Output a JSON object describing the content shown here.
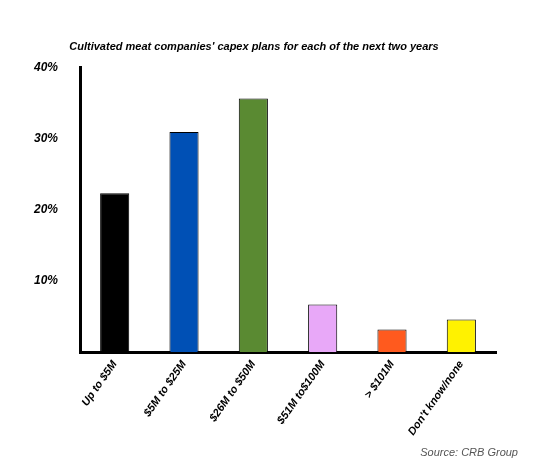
{
  "chart_data": {
    "type": "bar",
    "title": "Cultivated meat companies' capex plans for each of the next two years",
    "categories": [
      "Up to $5M",
      "$5M to $25M",
      "$26M to $50M",
      "$51M to$100M",
      "> $101M",
      "Don't know/none"
    ],
    "values": [
      22.3,
      30.9,
      35.6,
      6.7,
      3.2,
      4.6
    ],
    "colors": [
      "#000000",
      "#0050b5",
      "#5a8a32",
      "#e8a8f8",
      "#ff5a1e",
      "#fff200"
    ],
    "ylim": [
      0,
      40
    ],
    "yticks": [
      {
        "value": 10,
        "label": "10%"
      },
      {
        "value": 20,
        "label": "20%"
      },
      {
        "value": 30,
        "label": "30%"
      },
      {
        "value": 40,
        "label": "40%"
      }
    ],
    "grid": false,
    "annotations": [
      "Source: CRB Group"
    ]
  }
}
